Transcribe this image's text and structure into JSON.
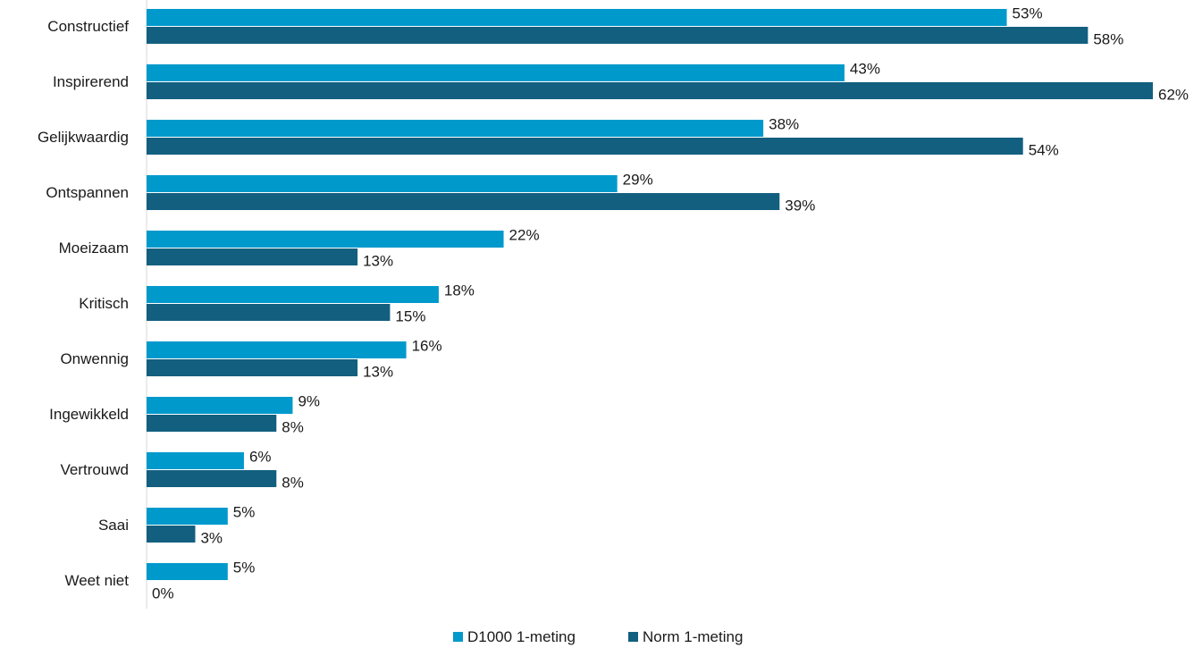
{
  "chart_data": {
    "type": "bar",
    "orientation": "horizontal",
    "categories": [
      "Constructief",
      "Inspirerend",
      "Gelijkwaardig",
      "Ontspannen",
      "Moeizaam",
      "Kritisch",
      "Onwennig",
      "Ingewikkeld",
      "Vertrouwd",
      "Saai",
      "Weet niet"
    ],
    "series": [
      {
        "name": "D1000 1-meting",
        "color": "#0099cc",
        "values": [
          53,
          43,
          38,
          29,
          22,
          18,
          16,
          9,
          6,
          5,
          5
        ],
        "labels": [
          "53%",
          "43%",
          "38%",
          "29%",
          "22%",
          "18%",
          "16%",
          "9%",
          "6%",
          "5%",
          "5%"
        ]
      },
      {
        "name": "Norm 1-meting",
        "color": "#135f7f",
        "values": [
          58,
          62,
          54,
          39,
          13,
          15,
          13,
          8,
          8,
          3,
          0
        ],
        "labels": [
          "58%",
          "62%",
          "54%",
          "39%",
          "13%",
          "15%",
          "13%",
          "8%",
          "8%",
          "3%",
          "0%"
        ]
      }
    ],
    "xlim": [
      0,
      62
    ],
    "grid": false,
    "legend_position": "bottom-center"
  }
}
